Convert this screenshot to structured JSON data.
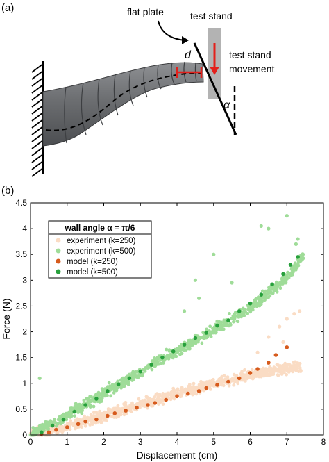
{
  "panel_a": {
    "label": "(a)",
    "flat_plate_label": "flat plate",
    "test_stand_label": "test stand",
    "movement_label_line1": "test stand",
    "movement_label_line2": "movement",
    "d_symbol": "d",
    "alpha_symbol": "α",
    "colors": {
      "robot": "#6f7174",
      "stand": "#b3b3b3",
      "arrow": "#e3201b"
    }
  },
  "panel_b": {
    "label": "(b)"
  },
  "chart_data": {
    "type": "scatter",
    "xlabel": "Displacement (cm)",
    "ylabel": "Force (N)",
    "xlim": [
      0,
      8
    ],
    "ylim": [
      0,
      4.5
    ],
    "xticks": [
      0,
      1,
      2,
      3,
      4,
      5,
      6,
      7,
      8
    ],
    "yticks": [
      0,
      0.5,
      1,
      1.5,
      2,
      2.5,
      3,
      3.5,
      4,
      4.5
    ],
    "xtick_labels": [
      "0",
      "1",
      "2",
      "3",
      "4",
      "5",
      "6",
      "7",
      "8"
    ],
    "ytick_labels": [
      "0",
      "0.5",
      "1",
      "1.5",
      "2",
      "2.5",
      "3",
      "3.5",
      "4",
      "4.5"
    ],
    "grid": false,
    "legend_position": "top-left",
    "legend_title": "wall angle α = π/6",
    "series": [
      {
        "name": "experiment (k=250)",
        "color": "#fadcc4",
        "style": "cloud",
        "x_end": 7.4,
        "trend": [
          [
            0,
            0
          ],
          [
            1,
            0.15
          ],
          [
            2,
            0.37
          ],
          [
            3,
            0.58
          ],
          [
            4,
            0.8
          ],
          [
            5,
            1.0
          ],
          [
            6,
            1.17
          ],
          [
            7,
            1.3
          ],
          [
            7.4,
            1.3
          ]
        ],
        "spread": 0.1,
        "outliers": [
          [
            6.2,
            1.6
          ],
          [
            6.5,
            1.9
          ],
          [
            6.8,
            2.1
          ],
          [
            7.0,
            2.25
          ],
          [
            7.2,
            2.35
          ],
          [
            7.35,
            2.4
          ],
          [
            6.9,
            1.8
          ]
        ]
      },
      {
        "name": "experiment (k=500)",
        "color": "#9fdc98",
        "style": "cloud",
        "x_end": 7.45,
        "trend": [
          [
            0,
            0
          ],
          [
            1,
            0.38
          ],
          [
            2,
            0.8
          ],
          [
            3,
            1.23
          ],
          [
            4,
            1.63
          ],
          [
            5,
            2.02
          ],
          [
            6,
            2.47
          ],
          [
            7,
            3.05
          ],
          [
            7.45,
            3.48
          ]
        ],
        "spread": 0.1,
        "outliers": [
          [
            0.25,
            1.1
          ],
          [
            7.0,
            4.25
          ],
          [
            6.5,
            4.0
          ],
          [
            6.3,
            4.05
          ],
          [
            5.0,
            3.5
          ],
          [
            4.2,
            2.4
          ],
          [
            4.6,
            2.65
          ],
          [
            4.5,
            3.0
          ],
          [
            5.5,
            2.95
          ],
          [
            7.3,
            3.8
          ],
          [
            7.25,
            3.7
          ]
        ]
      },
      {
        "name": "model (k=250)",
        "color": "#d65a1c",
        "style": "markers",
        "x": [
          0.3,
          0.5,
          0.7,
          1.0,
          1.3,
          1.5,
          1.8,
          2.1,
          2.3,
          2.6,
          2.9,
          3.2,
          3.4,
          3.7,
          4.0,
          4.3,
          4.6,
          4.8,
          5.1,
          5.4,
          5.7,
          6.0,
          6.2,
          6.5,
          6.7,
          7.0
        ],
        "y": [
          0.02,
          0.05,
          0.1,
          0.15,
          0.21,
          0.26,
          0.3,
          0.37,
          0.42,
          0.47,
          0.53,
          0.58,
          0.62,
          0.68,
          0.75,
          0.8,
          0.85,
          0.91,
          0.97,
          1.03,
          1.1,
          1.2,
          1.28,
          1.4,
          1.55,
          1.7
        ]
      },
      {
        "name": "model (k=500)",
        "color": "#27a03c",
        "style": "markers",
        "x": [
          0.3,
          0.6,
          0.9,
          1.2,
          1.5,
          1.8,
          2.1,
          2.4,
          2.7,
          3.0,
          3.3,
          3.6,
          3.9,
          4.2,
          4.5,
          4.8,
          5.1,
          5.4,
          5.7,
          6.0,
          6.3,
          6.6,
          6.9,
          7.1,
          7.3
        ],
        "y": [
          0.05,
          0.18,
          0.3,
          0.45,
          0.58,
          0.7,
          0.85,
          0.98,
          1.1,
          1.23,
          1.36,
          1.5,
          1.62,
          1.75,
          1.88,
          1.98,
          2.12,
          2.22,
          2.4,
          2.55,
          2.72,
          2.92,
          3.12,
          3.3,
          3.45
        ]
      }
    ]
  }
}
